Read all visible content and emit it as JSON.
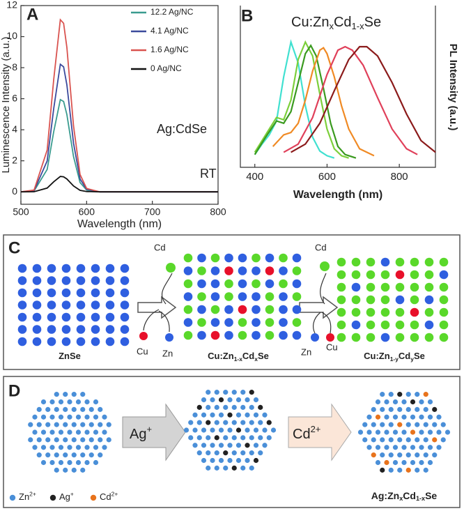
{
  "chart_data": [
    {
      "type": "line",
      "panel_label": "A",
      "x_label": "Wavelength (nm)",
      "y_label": "Luminescence Intensity (a.u.)",
      "x": [
        500,
        520,
        540,
        550,
        560,
        565,
        570,
        580,
        590,
        600,
        620,
        650,
        700,
        750,
        800
      ],
      "series": [
        {
          "name": "12.2 Ag/NC",
          "color": "#3a9b8f",
          "values": [
            0,
            0.06,
            1.44,
            3.9,
            5.94,
            5.82,
            4.98,
            2.28,
            0.6,
            0.12,
            0,
            0,
            0,
            0,
            0
          ]
        },
        {
          "name": "4.1 Ag/NC",
          "color": "#3b4a9c",
          "values": [
            0,
            0.08,
            1.99,
            5.4,
            8.22,
            8.05,
            6.89,
            3.15,
            0.83,
            0.17,
            0,
            0,
            0,
            0,
            0
          ]
        },
        {
          "name": "1.6 Ag/NC",
          "color": "#d9534f",
          "values": [
            0,
            0.11,
            2.69,
            7.28,
            11.09,
            10.86,
            9.3,
            4.26,
            1.12,
            0.22,
            0,
            0,
            0,
            0,
            0
          ]
        },
        {
          "name": "0 Ag/NC",
          "color": "#111111",
          "values": [
            0,
            0.01,
            0.24,
            0.65,
            0.99,
            0.97,
            0.83,
            0.38,
            0.1,
            0.02,
            0,
            0,
            0,
            0,
            0
          ]
        }
      ],
      "annotations": [
        "Ag:CdSe",
        "RT"
      ],
      "legend": "upper right",
      "xlim": [
        500,
        800
      ],
      "xticks": [
        500,
        600,
        700,
        800
      ],
      "ylim": [
        -0.8,
        12
      ],
      "yticks": [
        0,
        2,
        4,
        6,
        8,
        10,
        12
      ]
    },
    {
      "type": "line",
      "panel_label": "B",
      "title_parts": [
        "Cu:Zn",
        "x",
        "Cd",
        "1-x",
        "Se"
      ],
      "x_label": "Wavelength (nm)",
      "y_label": "PL Intensity (a.u.)",
      "series": [
        {
          "color": "#40e0d0",
          "x": [
            400,
            420,
            440,
            460,
            480,
            500,
            520,
            540,
            560,
            580,
            600,
            620
          ],
          "values": [
            0.03,
            0.12,
            0.2,
            0.32,
            0.7,
            1.0,
            0.82,
            0.45,
            0.18,
            0.06,
            0.02,
            0
          ]
        },
        {
          "color": "#7ccf3a",
          "x": [
            400,
            430,
            460,
            480,
            500,
            520,
            540,
            560,
            580,
            600,
            620,
            640,
            660
          ],
          "values": [
            0.05,
            0.2,
            0.35,
            0.33,
            0.5,
            0.85,
            1.0,
            0.88,
            0.55,
            0.25,
            0.08,
            0.02,
            0
          ]
        },
        {
          "color": "#3a9a1f",
          "x": [
            400,
            430,
            460,
            480,
            500,
            520,
            540,
            555,
            570,
            590,
            610,
            630,
            650,
            680
          ],
          "values": [
            0.03,
            0.18,
            0.32,
            0.3,
            0.4,
            0.65,
            0.9,
            0.97,
            0.88,
            0.6,
            0.3,
            0.1,
            0.03,
            0
          ]
        },
        {
          "color": "#f08a24",
          "x": [
            450,
            480,
            500,
            520,
            540,
            560,
            580,
            590,
            600,
            620,
            640,
            660,
            690,
            730
          ],
          "values": [
            0.1,
            0.2,
            0.22,
            0.3,
            0.5,
            0.75,
            0.93,
            0.95,
            0.9,
            0.7,
            0.45,
            0.25,
            0.08,
            0.02
          ]
        },
        {
          "color": "#e0405a",
          "x": [
            480,
            520,
            560,
            600,
            630,
            650,
            670,
            700,
            740,
            780,
            820,
            850
          ],
          "values": [
            0.05,
            0.12,
            0.35,
            0.72,
            0.93,
            0.96,
            0.93,
            0.8,
            0.52,
            0.25,
            0.08,
            0.03
          ]
        },
        {
          "color": "#8b1a1a",
          "x": [
            500,
            540,
            580,
            620,
            660,
            690,
            710,
            740,
            780,
            820,
            860,
            900
          ],
          "values": [
            0.05,
            0.12,
            0.3,
            0.58,
            0.85,
            0.96,
            0.96,
            0.88,
            0.65,
            0.38,
            0.15,
            0.05
          ]
        }
      ],
      "xlim": [
        360,
        900
      ],
      "xticks": [
        400,
        600,
        800
      ],
      "ylim": [
        -0.08,
        1.05
      ]
    }
  ],
  "panel_c": {
    "label": "C",
    "stages": [
      [
        "ZnSe"
      ],
      [
        "Cu:Zn",
        "1-x",
        "Cd",
        "x",
        "Se"
      ],
      [
        "Cu:Zn",
        "1-y",
        "Cd",
        "y",
        "Se"
      ]
    ],
    "steps": [
      {
        "in": "Cd",
        "out": [
          "Cu",
          "Zn"
        ]
      },
      {
        "in": "Cd",
        "out": [
          "Zn",
          "Cu"
        ]
      }
    ]
  },
  "panel_d": {
    "label": "D",
    "steps": [
      [
        "Ag",
        "+"
      ],
      [
        "Cd",
        "2+"
      ]
    ],
    "product": [
      "Ag:Zn",
      "x",
      "Cd",
      "1-x",
      "Se"
    ],
    "legend": [
      [
        "Zn",
        "2+"
      ],
      [
        "Ag",
        "+"
      ],
      [
        "Cd",
        "2+"
      ]
    ]
  }
}
